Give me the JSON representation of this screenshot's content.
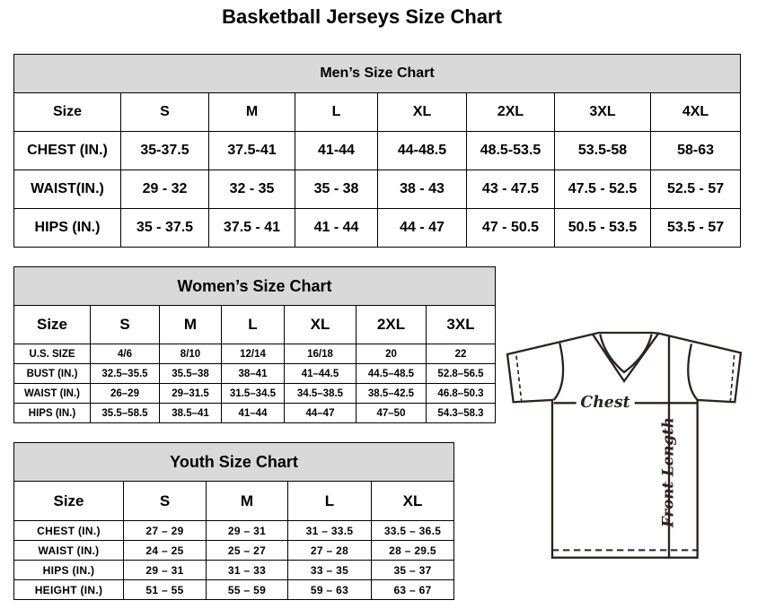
{
  "title": "Basketball Jerseys Size Chart",
  "men": {
    "title": "Men’s Size Chart",
    "header": [
      "Size",
      "S",
      "M",
      "L",
      "XL",
      "2XL",
      "3XL",
      "4XL"
    ],
    "rows": [
      [
        "CHEST (IN.)",
        "35-37.5",
        "37.5-41",
        "41-44",
        "44-48.5",
        "48.5-53.5",
        "53.5-58",
        "58-63"
      ],
      [
        "WAIST(IN.)",
        "29 - 32",
        "32 - 35",
        "35 - 38",
        "38 - 43",
        "43 - 47.5",
        "47.5 - 52.5",
        "52.5 - 57"
      ],
      [
        "HIPS (IN.)",
        "35 - 37.5",
        "37.5 - 41",
        "41 - 44",
        "44 - 47",
        "47 - 50.5",
        "50.5 - 53.5",
        "53.5 - 57"
      ]
    ]
  },
  "women": {
    "title": "Women’s Size Chart",
    "header": [
      "Size",
      "S",
      "M",
      "L",
      "XL",
      "2XL",
      "3XL"
    ],
    "rows": [
      [
        "U.S.  SIZE",
        "4/6",
        "8/10",
        "12/14",
        "16/18",
        "20",
        "22"
      ],
      [
        "BUST  (IN.)",
        "32.5–35.5",
        "35.5–38",
        "38–41",
        "41–44.5",
        "44.5–48.5",
        "52.8–56.5"
      ],
      [
        "WAIST  (IN.)",
        "26–29",
        "29–31.5",
        "31.5–34.5",
        "34.5–38.5",
        "38.5–42.5",
        "46.8–50.3"
      ],
      [
        "HIPS  (IN.)",
        "35.5–58.5",
        "38.5–41",
        "41–44",
        "44–47",
        "47–50",
        "54.3–58.3"
      ]
    ]
  },
  "youth": {
    "title": "Youth Size Chart",
    "header": [
      "Size",
      "S",
      "M",
      "L",
      "XL"
    ],
    "rows": [
      [
        "CHEST  (IN.)",
        "27  –  29",
        "29  –  31",
        "31  –  33.5",
        "33.5  –  36.5"
      ],
      [
        "WAIST  (IN.)",
        "24  –  25",
        "25  –  27",
        "27  –  28",
        "28  –  29.5"
      ],
      [
        "HIPS  (IN.)",
        "29  –  31",
        "31  –  33",
        "33  –  35",
        "35  –  37"
      ],
      [
        "HEIGHT  (IN.)",
        "51  –  55",
        "55  –  59",
        "59  –  63",
        "63  –  67"
      ]
    ]
  },
  "diagram": {
    "chest_label": "Chest",
    "length_label": "Front Length",
    "line_color": "#2b2320"
  }
}
